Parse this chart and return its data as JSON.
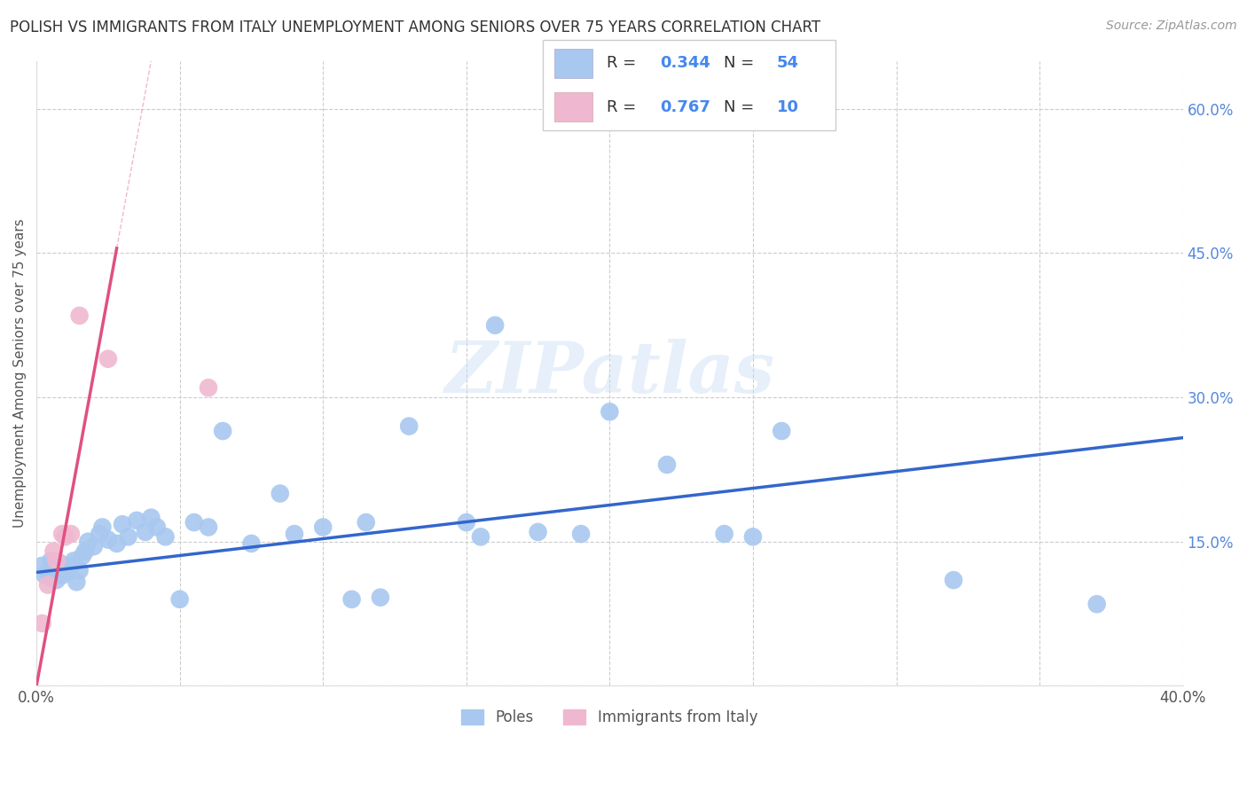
{
  "title": "POLISH VS IMMIGRANTS FROM ITALY UNEMPLOYMENT AMONG SENIORS OVER 75 YEARS CORRELATION CHART",
  "source": "Source: ZipAtlas.com",
  "ylabel": "Unemployment Among Seniors over 75 years",
  "xlim": [
    0.0,
    0.4
  ],
  "ylim": [
    0.0,
    0.65
  ],
  "yticks": [
    0.0,
    0.15,
    0.3,
    0.45,
    0.6
  ],
  "ytick_labels": [
    "",
    "15.0%",
    "30.0%",
    "45.0%",
    "60.0%"
  ],
  "xticks": [
    0.0,
    0.05,
    0.1,
    0.15,
    0.2,
    0.25,
    0.3,
    0.35,
    0.4
  ],
  "xtick_labels": [
    "0.0%",
    "",
    "",
    "",
    "",
    "",
    "",
    "",
    "40.0%"
  ],
  "legend_label_blue": "Poles",
  "legend_label_pink": "Immigrants from Italy",
  "blue_dot_color": "#a8c8f0",
  "pink_dot_color": "#f0b8d0",
  "blue_line_color": "#3366cc",
  "pink_line_color": "#e05080",
  "blue_r": "0.344",
  "blue_n": "54",
  "pink_r": "0.767",
  "pink_n": "10",
  "watermark": "ZIPatlas",
  "poles_x": [
    0.002,
    0.003,
    0.004,
    0.005,
    0.005,
    0.006,
    0.007,
    0.008,
    0.009,
    0.01,
    0.011,
    0.012,
    0.013,
    0.014,
    0.015,
    0.016,
    0.017,
    0.018,
    0.02,
    0.022,
    0.023,
    0.025,
    0.028,
    0.03,
    0.032,
    0.035,
    0.038,
    0.04,
    0.042,
    0.045,
    0.05,
    0.055,
    0.06,
    0.065,
    0.075,
    0.085,
    0.09,
    0.1,
    0.11,
    0.115,
    0.12,
    0.13,
    0.15,
    0.155,
    0.16,
    0.175,
    0.19,
    0.2,
    0.22,
    0.24,
    0.25,
    0.26,
    0.32,
    0.37
  ],
  "poles_y": [
    0.125,
    0.115,
    0.118,
    0.13,
    0.112,
    0.12,
    0.11,
    0.128,
    0.115,
    0.122,
    0.118,
    0.125,
    0.13,
    0.108,
    0.12,
    0.135,
    0.14,
    0.15,
    0.145,
    0.158,
    0.165,
    0.152,
    0.148,
    0.168,
    0.155,
    0.172,
    0.16,
    0.175,
    0.165,
    0.155,
    0.09,
    0.17,
    0.165,
    0.265,
    0.148,
    0.2,
    0.158,
    0.165,
    0.09,
    0.17,
    0.092,
    0.27,
    0.17,
    0.155,
    0.375,
    0.16,
    0.158,
    0.285,
    0.23,
    0.158,
    0.155,
    0.265,
    0.11,
    0.085
  ],
  "italy_x": [
    0.002,
    0.004,
    0.006,
    0.007,
    0.009,
    0.01,
    0.012,
    0.015,
    0.025,
    0.06
  ],
  "italy_y": [
    0.065,
    0.105,
    0.14,
    0.13,
    0.158,
    0.155,
    0.158,
    0.385,
    0.34,
    0.31
  ],
  "blue_trend": [
    0.0,
    0.4,
    0.118,
    0.258
  ],
  "pink_trend_solid": [
    0.0,
    0.028,
    0.0,
    0.455
  ],
  "pink_trend_dashed": [
    0.028,
    0.35,
    0.455,
    5.85
  ]
}
